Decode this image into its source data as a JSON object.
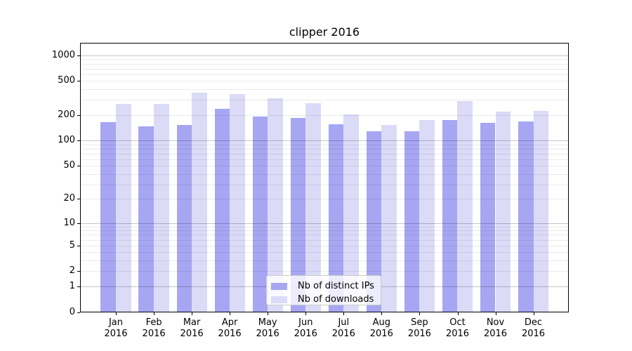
{
  "title": "clipper 2016",
  "chart_data": {
    "type": "bar",
    "title": "clipper 2016",
    "xlabel": "",
    "ylabel": "",
    "categories": [
      "Jan",
      "Feb",
      "Mar",
      "Apr",
      "May",
      "Jun",
      "Jul",
      "Aug",
      "Sep",
      "Oct",
      "Nov",
      "Dec"
    ],
    "category_year": "2016",
    "series": [
      {
        "name": "Nb of distinct IPs",
        "color": "#a6a6f2",
        "values": [
          166,
          146,
          154,
          237,
          192,
          183,
          156,
          129,
          129,
          175,
          161,
          167
        ]
      },
      {
        "name": "Nb of downloads",
        "color": "#dbdbf8",
        "values": [
          272,
          268,
          367,
          352,
          314,
          276,
          202,
          154,
          173,
          291,
          219,
          225
        ]
      }
    ],
    "yscale": "log1p",
    "ylim": [
      0,
      1400
    ],
    "yticks": [
      0,
      1,
      2,
      5,
      10,
      20,
      50,
      100,
      200,
      500,
      1000
    ],
    "grid": "both",
    "legend_position": "lower-center-inside",
    "legend_labels": [
      "Nb of distinct IPs",
      "Nb of downloads"
    ]
  }
}
